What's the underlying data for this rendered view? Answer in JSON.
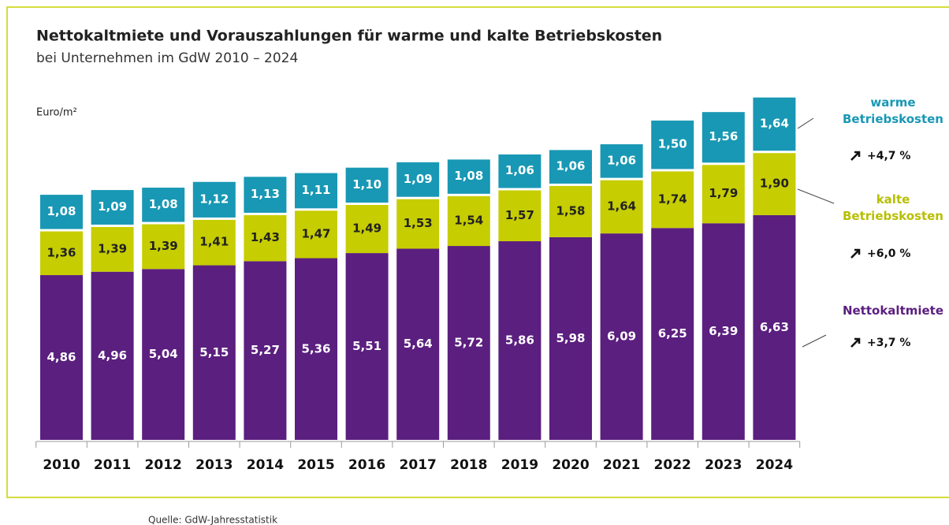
{
  "chart_data": {
    "type": "bar",
    "stacked": true,
    "title": "Nettokaltmiete und Vorauszahlungen für warme und kalte Betriebskosten",
    "subtitle": "bei Unternehmen im GdW 2010 – 2024",
    "unit_label": "Euro/m²",
    "source": "Quelle: GdW-Jahresstatistik",
    "categories": [
      "2010",
      "2011",
      "2012",
      "2013",
      "2014",
      "2015",
      "2016",
      "2017",
      "2018",
      "2019",
      "2020",
      "2021",
      "2022",
      "2023",
      "2024"
    ],
    "series": [
      {
        "name": "Nettokaltmiete",
        "color": "#5b1f7f",
        "label_color": "#ffffff",
        "change": "+3,7 %",
        "values": [
          4.86,
          4.96,
          5.04,
          5.15,
          5.27,
          5.36,
          5.51,
          5.64,
          5.72,
          5.86,
          5.98,
          6.09,
          6.25,
          6.39,
          6.63
        ],
        "value_labels": [
          "4,86",
          "4,96",
          "5,04",
          "5,15",
          "5,27",
          "5,36",
          "5,51",
          "5,64",
          "5,72",
          "5,86",
          "5,98",
          "6,09",
          "6,25",
          "6,39",
          "6,63"
        ]
      },
      {
        "name": "kalte Betriebskosten",
        "color": "#c6cd00",
        "label_color": "#222222",
        "change": "+6,0 %",
        "values": [
          1.36,
          1.39,
          1.39,
          1.41,
          1.43,
          1.47,
          1.49,
          1.53,
          1.54,
          1.57,
          1.58,
          1.64,
          1.74,
          1.79,
          1.9
        ],
        "value_labels": [
          "1,36",
          "1,39",
          "1,39",
          "1,41",
          "1,43",
          "1,47",
          "1,49",
          "1,53",
          "1,54",
          "1,57",
          "1,58",
          "1,64",
          "1,74",
          "1,79",
          "1,90"
        ]
      },
      {
        "name": "warme Betriebskosten",
        "color": "#1898b4",
        "label_color": "#ffffff",
        "change": "+4,7 %",
        "values": [
          1.08,
          1.09,
          1.08,
          1.12,
          1.13,
          1.11,
          1.1,
          1.09,
          1.08,
          1.06,
          1.06,
          1.06,
          1.5,
          1.56,
          1.64
        ],
        "value_labels": [
          "1,08",
          "1,09",
          "1,08",
          "1,12",
          "1,13",
          "1,11",
          "1,10",
          "1,09",
          "1,08",
          "1,06",
          "1,06",
          "1,06",
          "1,50",
          "1,56",
          "1,64"
        ]
      }
    ]
  }
}
